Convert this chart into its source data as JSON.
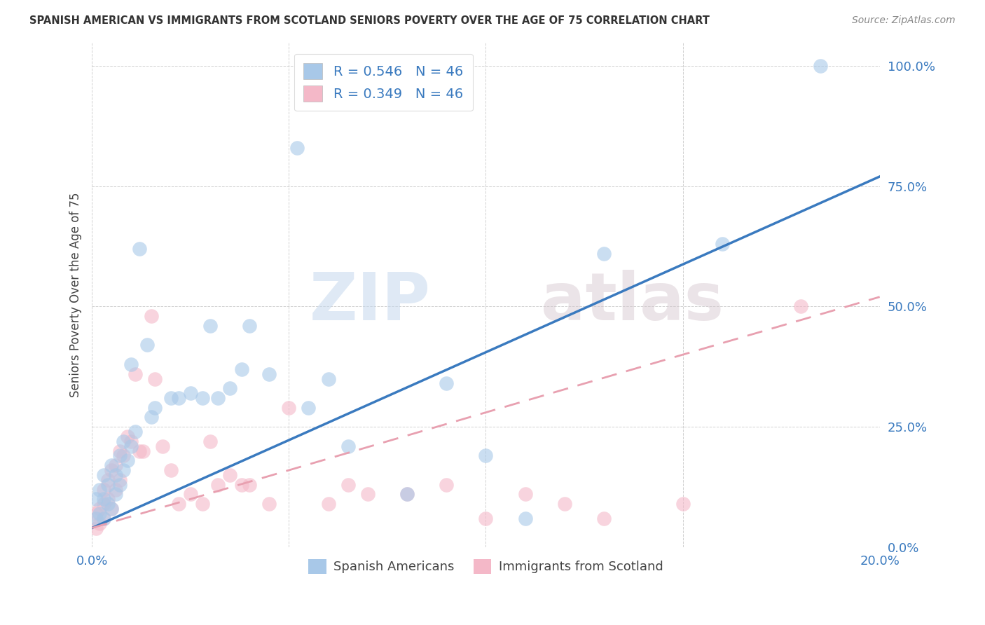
{
  "title": "SPANISH AMERICAN VS IMMIGRANTS FROM SCOTLAND SENIORS POVERTY OVER THE AGE OF 75 CORRELATION CHART",
  "source": "Source: ZipAtlas.com",
  "ylabel": "Seniors Poverty Over the Age of 75",
  "xlabel": "",
  "xlim": [
    0.0,
    0.2
  ],
  "ylim": [
    0.0,
    1.05
  ],
  "yticks": [
    0.0,
    0.25,
    0.5,
    0.75,
    1.0
  ],
  "ytick_labels": [
    "0.0%",
    "25.0%",
    "50.0%",
    "75.0%",
    "100.0%"
  ],
  "xticks": [
    0.0,
    0.05,
    0.1,
    0.15,
    0.2
  ],
  "xtick_labels": [
    "0.0%",
    "",
    "",
    "",
    "20.0%"
  ],
  "blue_R": 0.546,
  "blue_N": 46,
  "pink_R": 0.349,
  "pink_N": 46,
  "blue_color": "#a8c8e8",
  "pink_color": "#f4b8c8",
  "blue_line_color": "#3a7abf",
  "pink_line_color": "#e8a0b0",
  "watermark_zip": "ZIP",
  "watermark_atlas": "atlas",
  "legend_label_blue": "Spanish Americans",
  "legend_label_pink": "Immigrants from Scotland",
  "blue_line_x": [
    0.0,
    0.2
  ],
  "blue_line_y": [
    0.04,
    0.77
  ],
  "pink_line_x": [
    0.0,
    0.2
  ],
  "pink_line_y": [
    0.04,
    0.52
  ],
  "blue_scatter_x": [
    0.001,
    0.001,
    0.002,
    0.002,
    0.003,
    0.003,
    0.003,
    0.004,
    0.004,
    0.005,
    0.005,
    0.006,
    0.006,
    0.007,
    0.007,
    0.008,
    0.008,
    0.009,
    0.01,
    0.01,
    0.011,
    0.012,
    0.014,
    0.015,
    0.016,
    0.02,
    0.022,
    0.025,
    0.028,
    0.03,
    0.032,
    0.035,
    0.038,
    0.04,
    0.045,
    0.052,
    0.055,
    0.06,
    0.065,
    0.08,
    0.09,
    0.1,
    0.11,
    0.13,
    0.16,
    0.185
  ],
  "blue_scatter_y": [
    0.06,
    0.1,
    0.07,
    0.12,
    0.06,
    0.1,
    0.15,
    0.09,
    0.13,
    0.08,
    0.17,
    0.11,
    0.15,
    0.19,
    0.13,
    0.22,
    0.16,
    0.18,
    0.21,
    0.38,
    0.24,
    0.62,
    0.42,
    0.27,
    0.29,
    0.31,
    0.31,
    0.32,
    0.31,
    0.46,
    0.31,
    0.33,
    0.37,
    0.46,
    0.36,
    0.83,
    0.29,
    0.35,
    0.21,
    0.11,
    0.34,
    0.19,
    0.06,
    0.61,
    0.63,
    1.0
  ],
  "pink_scatter_x": [
    0.001,
    0.001,
    0.002,
    0.002,
    0.003,
    0.003,
    0.003,
    0.004,
    0.004,
    0.005,
    0.005,
    0.006,
    0.006,
    0.007,
    0.007,
    0.008,
    0.009,
    0.01,
    0.011,
    0.012,
    0.013,
    0.015,
    0.016,
    0.018,
    0.02,
    0.022,
    0.025,
    0.028,
    0.03,
    0.032,
    0.035,
    0.038,
    0.04,
    0.045,
    0.05,
    0.06,
    0.065,
    0.07,
    0.08,
    0.09,
    0.1,
    0.11,
    0.12,
    0.13,
    0.15,
    0.18
  ],
  "pink_scatter_y": [
    0.04,
    0.07,
    0.05,
    0.08,
    0.06,
    0.09,
    0.12,
    0.1,
    0.14,
    0.08,
    0.16,
    0.12,
    0.17,
    0.14,
    0.2,
    0.19,
    0.23,
    0.22,
    0.36,
    0.2,
    0.2,
    0.48,
    0.35,
    0.21,
    0.16,
    0.09,
    0.11,
    0.09,
    0.22,
    0.13,
    0.15,
    0.13,
    0.13,
    0.09,
    0.29,
    0.09,
    0.13,
    0.11,
    0.11,
    0.13,
    0.06,
    0.11,
    0.09,
    0.06,
    0.09,
    0.5
  ]
}
